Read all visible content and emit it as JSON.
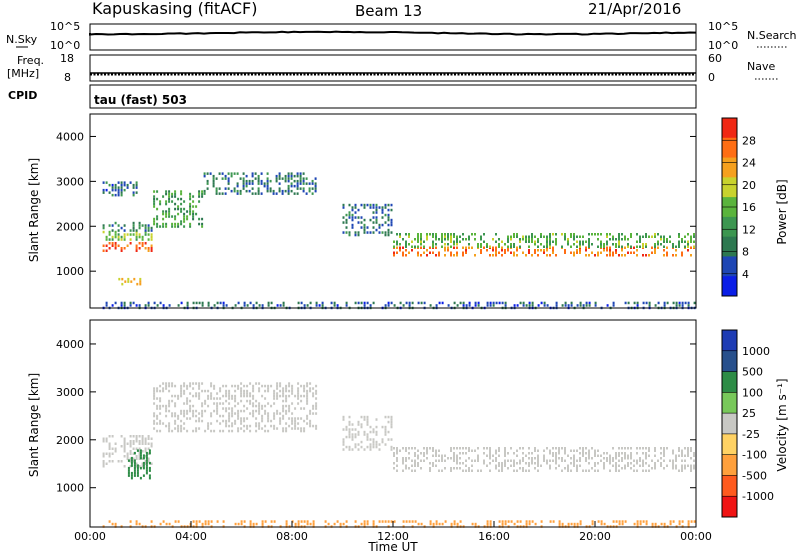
{
  "header": {
    "station": "Kapuskasing (fitACF)",
    "beam": "Beam 13",
    "date": "21/Apr/2016"
  },
  "noise_panel": {
    "left_label": "N.Sky",
    "left_ticks": [
      "10^5",
      "10^0"
    ],
    "right_ticks": [
      "10^5",
      "10^0"
    ],
    "right_label": "N.Search"
  },
  "freq_panel": {
    "label_line1": "Freq.",
    "label_line2": "[MHz]",
    "left_ticks": [
      "18",
      "8"
    ],
    "right_ticks": [
      "60",
      "0"
    ],
    "right_label": "Nave"
  },
  "cpid": {
    "label": "CPID",
    "value": "tau (fast) 503"
  },
  "colors": {
    "power": [
      "#0a1ee6",
      "#1e46b4",
      "#2d7850",
      "#3c9650",
      "#5ab43c",
      "#c8d22d",
      "#f5a01e",
      "#ff6e14",
      "#f02814"
    ],
    "velocity": [
      "#1e3cb4",
      "#28508c",
      "#2d8c46",
      "#78c85a",
      "#c8c8c4",
      "#ffd264",
      "#ffa03c",
      "#ff5a1e",
      "#f01414"
    ]
  },
  "chart_data": [
    {
      "type": "heatmap",
      "quantity": "Power",
      "xlabel": "",
      "ylabel": "Slant Range [km]",
      "xlim": [
        "00:00",
        "24:00"
      ],
      "ylim": [
        180,
        4500
      ],
      "y_ticks": [
        "1000",
        "2000",
        "3000",
        "4000"
      ],
      "colorbar": {
        "label": "Power [dB]",
        "ticks": [
          "4",
          "8",
          "12",
          "16",
          "20",
          "24",
          "28"
        ],
        "range": [
          0,
          30
        ]
      },
      "bands": [
        {
          "start_h": 0.5,
          "end_h": 2.5,
          "range_km": [
            1450,
            1650
          ],
          "level": 26
        },
        {
          "start_h": 0.5,
          "end_h": 2.5,
          "range_km": [
            1700,
            1900
          ],
          "level": 16
        },
        {
          "start_h": 0.5,
          "end_h": 2.5,
          "range_km": [
            1900,
            2100
          ],
          "level": 8
        },
        {
          "start_h": 0.5,
          "end_h": 2.0,
          "range_km": [
            2700,
            3000
          ],
          "level": 7
        },
        {
          "start_h": 1.0,
          "end_h": 2.0,
          "range_km": [
            700,
            850
          ],
          "level": 20
        },
        {
          "start_h": 2.5,
          "end_h": 4.5,
          "range_km": [
            2000,
            2800
          ],
          "level": 12
        },
        {
          "start_h": 4.5,
          "end_h": 9.0,
          "range_km": [
            2700,
            3200
          ],
          "level": 8
        },
        {
          "start_h": 10.0,
          "end_h": 12.0,
          "range_km": [
            1800,
            2500
          ],
          "level": 7
        },
        {
          "start_h": 12.0,
          "end_h": 24.0,
          "range_km": [
            1350,
            1550
          ],
          "level": 24
        },
        {
          "start_h": 12.0,
          "end_h": 24.0,
          "range_km": [
            1550,
            1850
          ],
          "level": 14
        },
        {
          "start_h": 0.5,
          "end_h": 24.0,
          "range_km": [
            200,
            320
          ],
          "level": 6
        }
      ]
    },
    {
      "type": "heatmap",
      "quantity": "Velocity",
      "xlabel": "Time UT",
      "ylabel": "Slant Range [km]",
      "xlim": [
        "00:00",
        "24:00"
      ],
      "x_ticks": [
        "00:00",
        "04:00",
        "08:00",
        "12:00",
        "16:00",
        "20:00",
        "00:00"
      ],
      "ylim": [
        180,
        4500
      ],
      "y_ticks": [
        "1000",
        "2000",
        "3000",
        "4000"
      ],
      "colorbar": {
        "label": "Velocity [m s⁻¹]",
        "ticks": [
          "1000",
          "500",
          "100",
          "25",
          "-25",
          "-100",
          "-500",
          "-1000"
        ]
      },
      "bands": [
        {
          "start_h": 0.5,
          "end_h": 2.5,
          "range_km": [
            1450,
            2100
          ],
          "velocity": 0
        },
        {
          "start_h": 1.5,
          "end_h": 2.4,
          "range_km": [
            1200,
            1800
          ],
          "velocity": 120
        },
        {
          "start_h": 2.5,
          "end_h": 9.0,
          "range_km": [
            2200,
            3200
          ],
          "velocity": 0
        },
        {
          "start_h": 10.0,
          "end_h": 12.0,
          "range_km": [
            1800,
            2500
          ],
          "velocity": 0
        },
        {
          "start_h": 12.0,
          "end_h": 24.0,
          "range_km": [
            1350,
            1850
          ],
          "velocity": 0
        },
        {
          "start_h": 0.5,
          "end_h": 24.0,
          "range_km": [
            200,
            320
          ],
          "velocity": -60
        }
      ]
    }
  ]
}
